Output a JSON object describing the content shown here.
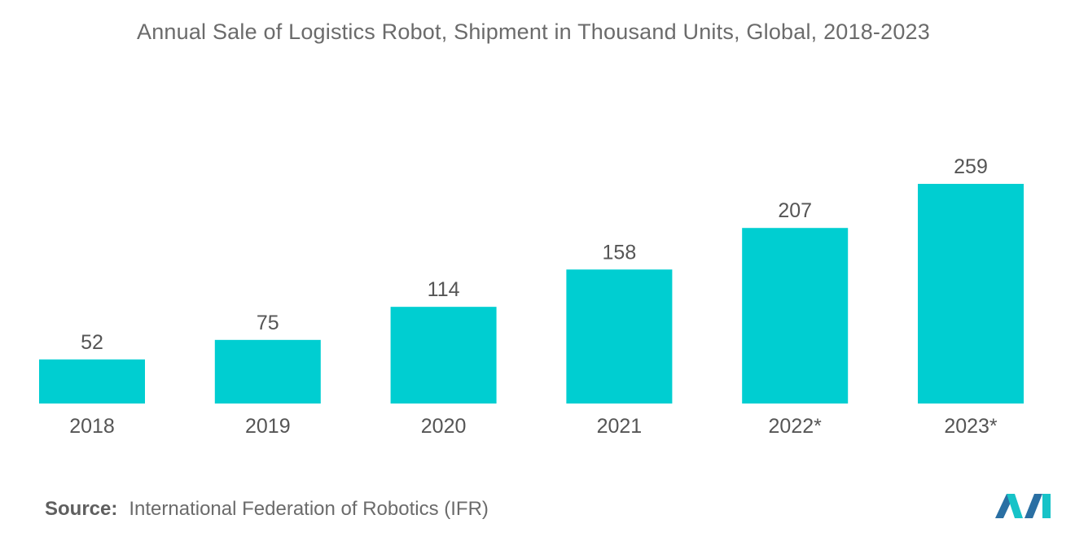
{
  "chart_data": {
    "type": "bar",
    "title": "Annual Sale of Logistics Robot, Shipment in Thousand Units, Global, 2018-2023",
    "categories": [
      "2018",
      "2019",
      "2020",
      "2021",
      "2022*",
      "2023*"
    ],
    "values": [
      52,
      75,
      114,
      158,
      207,
      259
    ],
    "xlabel": "",
    "ylabel": "",
    "ylim": [
      0,
      259
    ],
    "grid": false,
    "legend": "none",
    "bar_color": "#00ced1"
  },
  "footer": {
    "source_label": "Source:",
    "source_text": "International Federation of Robotics (IFR)"
  },
  "colors": {
    "text": "#6b6b6b",
    "logo_dark": "#2a6fa3",
    "logo_light": "#17c3c8"
  }
}
